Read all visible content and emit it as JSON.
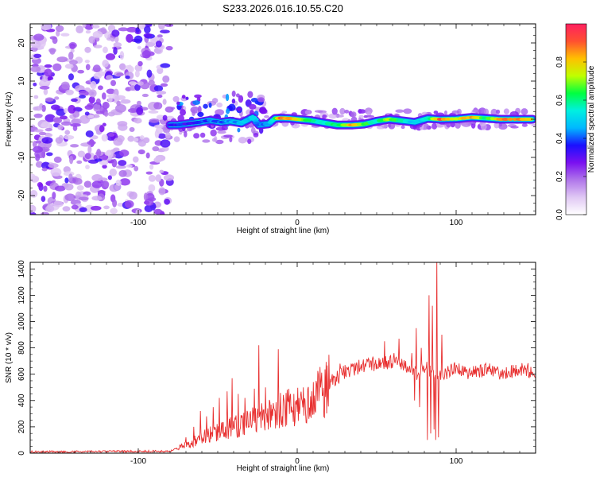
{
  "chart_data": [
    {
      "type": "heatmap",
      "title": "S233.2026.016.10.55.C20",
      "xlabel": "Height of straight line (km)",
      "ylabel": "Frequency (Hz)",
      "xlim": [
        -168,
        150
      ],
      "ylim": [
        -25,
        25
      ],
      "x_ticks": [
        -100,
        0,
        100
      ],
      "x_tick_labels": [
        "-100",
        "0",
        "100"
      ],
      "y_ticks": [
        -20,
        -10,
        0,
        10,
        20
      ],
      "y_tick_labels": [
        "-20",
        "-10",
        "0",
        "10",
        "20"
      ],
      "noise_region_x": [
        -168,
        -80
      ],
      "signal_start_x": -80,
      "signal_frequency_hz": 0,
      "signal_track": [
        {
          "x": -80,
          "y": -1.5,
          "a": 0.3
        },
        {
          "x": -75,
          "y": -1.5,
          "a": 0.35
        },
        {
          "x": -70,
          "y": -1.2,
          "a": 0.35
        },
        {
          "x": -62,
          "y": -0.8,
          "a": 0.35
        },
        {
          "x": -55,
          "y": -0.3,
          "a": 0.4
        },
        {
          "x": -48,
          "y": -0.8,
          "a": 0.4
        },
        {
          "x": -42,
          "y": -0.5,
          "a": 0.45
        },
        {
          "x": -35,
          "y": -1.0,
          "a": 0.45
        },
        {
          "x": -28,
          "y": 0.5,
          "a": 0.5
        },
        {
          "x": -24,
          "y": -1.5,
          "a": 0.4
        },
        {
          "x": -18,
          "y": -1.2,
          "a": 0.45
        },
        {
          "x": -14,
          "y": 0.2,
          "a": 0.6
        },
        {
          "x": -10,
          "y": 0.3,
          "a": 0.9
        },
        {
          "x": -5,
          "y": 0.2,
          "a": 0.85
        },
        {
          "x": 0,
          "y": 0.0,
          "a": 0.75
        },
        {
          "x": 8,
          "y": -0.3,
          "a": 0.6
        },
        {
          "x": 18,
          "y": -1.0,
          "a": 0.55
        },
        {
          "x": 25,
          "y": -1.5,
          "a": 0.6
        },
        {
          "x": 35,
          "y": -1.5,
          "a": 0.85
        },
        {
          "x": 42,
          "y": -1.3,
          "a": 0.65
        },
        {
          "x": 50,
          "y": -0.5,
          "a": 0.55
        },
        {
          "x": 58,
          "y": 0.0,
          "a": 0.7
        },
        {
          "x": 66,
          "y": -0.4,
          "a": 0.55
        },
        {
          "x": 74,
          "y": -0.8,
          "a": 0.5
        },
        {
          "x": 82,
          "y": 0.2,
          "a": 0.55
        },
        {
          "x": 90,
          "y": 0.0,
          "a": 0.9
        },
        {
          "x": 100,
          "y": 0.1,
          "a": 0.75
        },
        {
          "x": 110,
          "y": 0.5,
          "a": 0.85
        },
        {
          "x": 118,
          "y": 0.3,
          "a": 0.6
        },
        {
          "x": 128,
          "y": 0.0,
          "a": 0.85
        },
        {
          "x": 140,
          "y": 0.0,
          "a": 0.85
        },
        {
          "x": 148,
          "y": 0.0,
          "a": 0.8
        }
      ],
      "colorbar": {
        "label": "Normalized spectral amplitude",
        "range": [
          0.0,
          1.0
        ],
        "ticks": [
          0.0,
          0.2,
          0.4,
          0.6,
          0.8
        ],
        "tick_labels": [
          "0.0",
          "0.2",
          "0.4",
          "0.6",
          "0.8"
        ],
        "colors": [
          "#ffffff",
          "#e0c8f4",
          "#b076ea",
          "#7a10f0",
          "#1a10ff",
          "#00b8ff",
          "#00f0e0",
          "#00ff40",
          "#c0ff00",
          "#ffc000",
          "#ff5030",
          "#ff2060"
        ]
      }
    },
    {
      "type": "line",
      "xlabel": "Height of straight line (km)",
      "ylabel": "SNR (10 * v/v)",
      "xlim": [
        -168,
        150
      ],
      "ylim": [
        0,
        1450
      ],
      "x_ticks": [
        -100,
        0,
        100
      ],
      "x_tick_labels": [
        "-100",
        "0",
        "100"
      ],
      "y_ticks": [
        0,
        200,
        400,
        600,
        800,
        1000,
        1200,
        1400
      ],
      "y_tick_labels": [
        "0",
        "200",
        "400",
        "600",
        "800",
        "1000",
        "1200",
        "1400"
      ],
      "color": "#e83030",
      "series": [
        {
          "name": "SNR",
          "envelope_x": [
            -168,
            -80,
            -70,
            -60,
            -50,
            -40,
            -30,
            -20,
            -10,
            0,
            10,
            20,
            30,
            40,
            50,
            60,
            70,
            75,
            80,
            85,
            90,
            95,
            100,
            110,
            120,
            128,
            135,
            140,
            150
          ],
          "envelope_y": [
            10,
            15,
            60,
            120,
            160,
            200,
            240,
            280,
            320,
            360,
            420,
            520,
            620,
            660,
            680,
            690,
            660,
            600,
            650,
            620,
            580,
            620,
            640,
            610,
            640,
            600,
            620,
            640,
            620
          ],
          "spikes": [
            {
              "x": -70,
              "y": 120
            },
            {
              "x": -65,
              "y": 200
            },
            {
              "x": -61,
              "y": 320
            },
            {
              "x": -57,
              "y": 280
            },
            {
              "x": -53,
              "y": 350
            },
            {
              "x": -49,
              "y": 420
            },
            {
              "x": -44,
              "y": 470
            },
            {
              "x": -41,
              "y": 570
            },
            {
              "x": -37,
              "y": 450
            },
            {
              "x": -33,
              "y": 420
            },
            {
              "x": -27,
              "y": 490
            },
            {
              "x": -24,
              "y": 820
            },
            {
              "x": -20,
              "y": 500
            },
            {
              "x": -15,
              "y": 380
            },
            {
              "x": -12,
              "y": 790
            },
            {
              "x": -6,
              "y": 400
            },
            {
              "x": -2,
              "y": 450
            },
            {
              "x": 4,
              "y": 500
            },
            {
              "x": 10,
              "y": 540
            },
            {
              "x": 22,
              "y": 600
            },
            {
              "x": 27,
              "y": 680
            },
            {
              "x": 48,
              "y": 720
            },
            {
              "x": 55,
              "y": 850
            },
            {
              "x": 61,
              "y": 760
            },
            {
              "x": 64,
              "y": 870
            },
            {
              "x": 72,
              "y": 760
            },
            {
              "x": 75,
              "y": 950
            },
            {
              "x": 78,
              "y": 800
            },
            {
              "x": 83,
              "y": 1200
            },
            {
              "x": 85,
              "y": 1120
            },
            {
              "x": 88,
              "y": 1480
            },
            {
              "x": 91,
              "y": 900
            }
          ],
          "dips": [
            {
              "x": 74,
              "y": 400
            },
            {
              "x": 77,
              "y": 350
            },
            {
              "x": 82,
              "y": 100
            },
            {
              "x": 84,
              "y": 150
            },
            {
              "x": 86,
              "y": 180
            },
            {
              "x": 87,
              "y": 100
            },
            {
              "x": 89,
              "y": 120
            }
          ]
        }
      ]
    }
  ]
}
